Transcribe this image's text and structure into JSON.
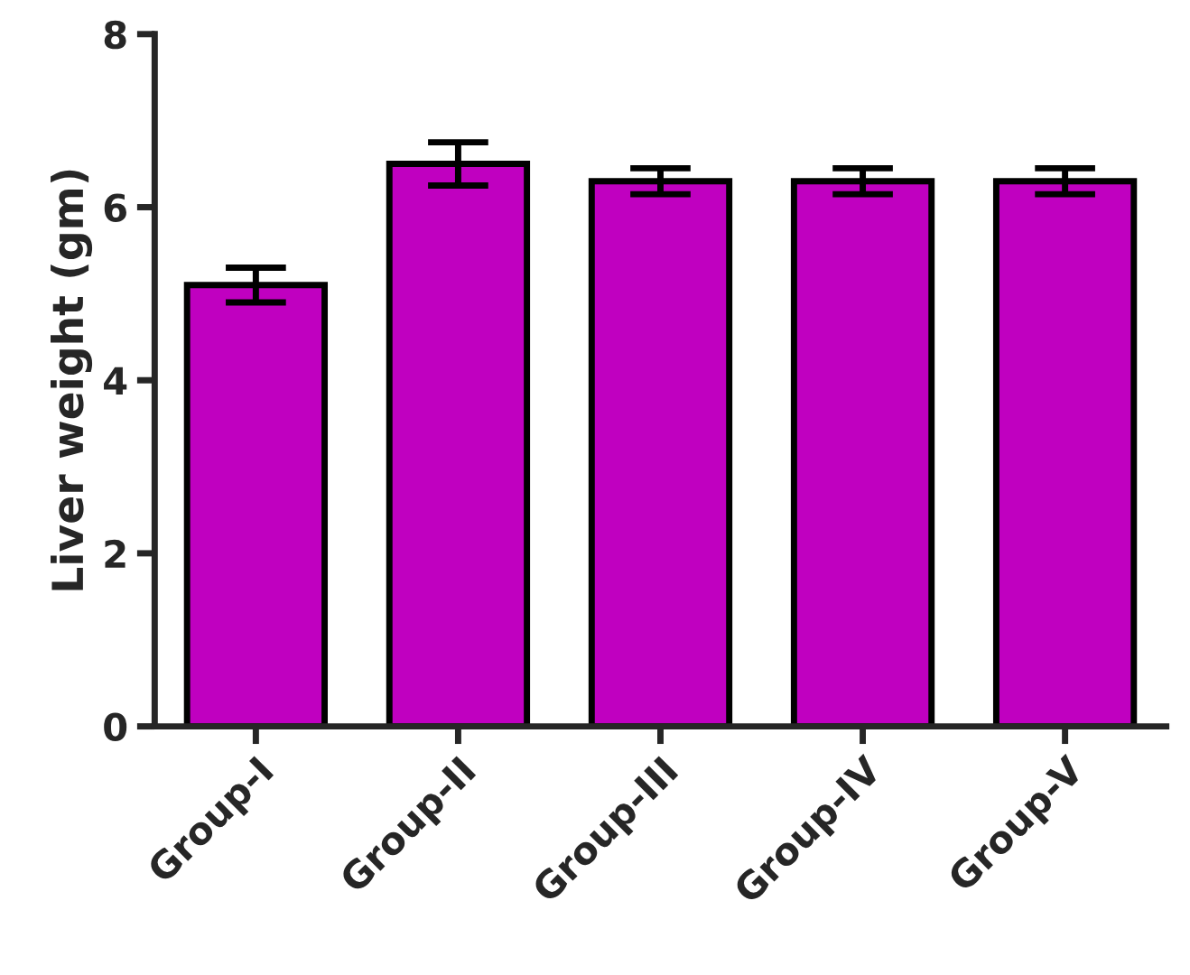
{
  "chart_data": {
    "type": "bar",
    "ylabel": "Liver weight (gm)",
    "categories": [
      "Group-I",
      "Group-II",
      "Group-III",
      "Group-IV",
      "Group-V"
    ],
    "values": [
      5.1,
      6.5,
      6.3,
      6.3,
      6.3
    ],
    "errors": [
      0.2,
      0.25,
      0.15,
      0.15,
      0.15
    ],
    "color": "#c000c0",
    "ylim": [
      0,
      8
    ],
    "yticks": [
      0,
      2,
      4,
      6,
      8
    ],
    "grid": false,
    "legend": false
  }
}
